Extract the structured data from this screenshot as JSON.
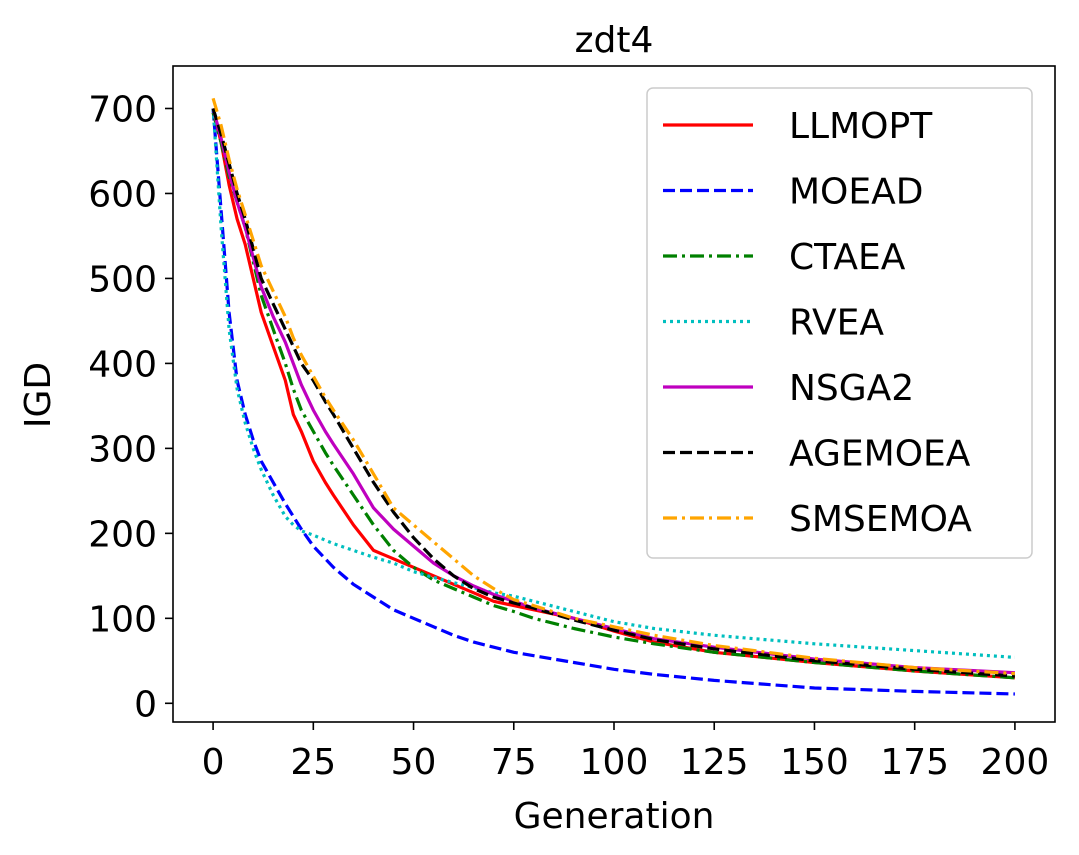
{
  "chart_data": {
    "type": "line",
    "title": "zdt4",
    "xlabel": "Generation",
    "ylabel": "IGD",
    "xlim": [
      -10,
      210
    ],
    "ylim": [
      -22,
      750
    ],
    "xticks": [
      0,
      25,
      50,
      75,
      100,
      125,
      150,
      175,
      200
    ],
    "yticks": [
      0,
      100,
      200,
      300,
      400,
      500,
      600,
      700
    ],
    "grid": false,
    "legend_position": "top-right",
    "x": [
      0,
      2,
      4,
      6,
      8,
      10,
      12,
      15,
      18,
      20,
      22,
      25,
      28,
      30,
      35,
      40,
      45,
      50,
      55,
      60,
      65,
      70,
      75,
      80,
      90,
      100,
      110,
      125,
      150,
      175,
      200
    ],
    "series": [
      {
        "name": "LLMOPT",
        "color": "#ff0000",
        "dash": "solid",
        "values": [
          700,
          660,
          610,
          570,
          540,
          500,
          460,
          420,
          380,
          340,
          320,
          285,
          260,
          245,
          210,
          180,
          170,
          160,
          150,
          140,
          130,
          120,
          115,
          110,
          100,
          85,
          72,
          60,
          48,
          38,
          30
        ]
      },
      {
        "name": "MOEAD",
        "color": "#0000ff",
        "dash": "dashed",
        "values": [
          700,
          580,
          460,
          380,
          340,
          310,
          285,
          260,
          235,
          220,
          205,
          185,
          170,
          160,
          140,
          125,
          110,
          100,
          90,
          80,
          72,
          66,
          60,
          56,
          48,
          40,
          34,
          27,
          18,
          14,
          11
        ]
      },
      {
        "name": "CTAEA",
        "color": "#008000",
        "dash": "dashdot",
        "values": [
          695,
          660,
          620,
          590,
          560,
          520,
          480,
          440,
          400,
          370,
          345,
          320,
          295,
          280,
          245,
          210,
          180,
          160,
          145,
          135,
          125,
          115,
          108,
          100,
          88,
          78,
          70,
          60,
          48,
          38,
          30
        ]
      },
      {
        "name": "RVEA",
        "color": "#00bfbf",
        "dash": "dotted",
        "values": [
          700,
          560,
          440,
          370,
          330,
          300,
          275,
          245,
          220,
          210,
          203,
          198,
          192,
          188,
          180,
          172,
          165,
          155,
          148,
          142,
          136,
          130,
          126,
          120,
          108,
          96,
          88,
          80,
          70,
          62,
          54
        ]
      },
      {
        "name": "NSGA2",
        "color": "#bf00bf",
        "dash": "solid",
        "values": [
          700,
          665,
          625,
          590,
          560,
          525,
          490,
          455,
          425,
          400,
          375,
          345,
          320,
          305,
          270,
          230,
          205,
          185,
          165,
          150,
          138,
          128,
          120,
          112,
          100,
          88,
          76,
          66,
          52,
          42,
          36
        ]
      },
      {
        "name": "AGEMOEA",
        "color": "#000000",
        "dash": "dashed",
        "values": [
          700,
          670,
          635,
          600,
          570,
          535,
          500,
          470,
          440,
          420,
          400,
          380,
          355,
          340,
          300,
          260,
          225,
          195,
          170,
          150,
          135,
          125,
          118,
          112,
          98,
          86,
          75,
          64,
          50,
          40,
          32
        ]
      },
      {
        "name": "SMSEMOA",
        "color": "#ffa500",
        "dash": "dashdot",
        "values": [
          712,
          680,
          640,
          605,
          575,
          545,
          515,
          485,
          455,
          430,
          410,
          385,
          360,
          345,
          310,
          270,
          230,
          210,
          190,
          170,
          150,
          135,
          122,
          115,
          100,
          90,
          80,
          68,
          53,
          42,
          35
        ]
      }
    ]
  }
}
